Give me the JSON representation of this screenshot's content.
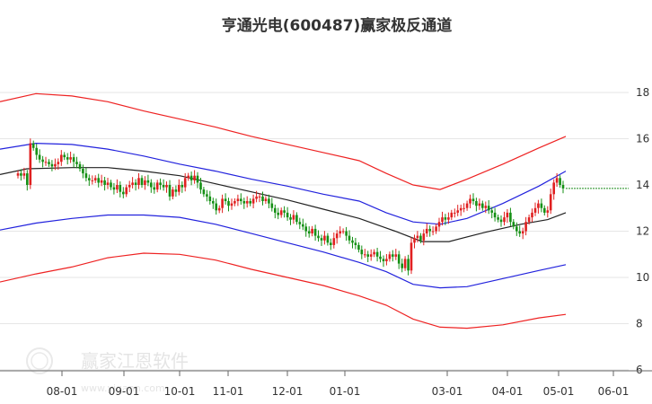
{
  "chart_data": {
    "type": "line",
    "title": "亨通光电(600487)赢家极反通道",
    "x_tick_labels": [
      "08-01",
      "09-01",
      "10-01",
      "11-01",
      "12-01",
      "01-01",
      "03-01",
      "04-01",
      "05-01",
      "06-01"
    ],
    "y_tick_labels": [
      "18",
      "16",
      "14",
      "12",
      "10",
      "8",
      "6"
    ],
    "ylim": [
      6,
      18.5
    ],
    "grid": "horizontal",
    "last_price": 13.85,
    "colors": {
      "outer_band": "#ee2222",
      "inner_band": "#2222dd",
      "middle_line": "#222222",
      "candle_up": "#e02020",
      "candle_down": "#159015",
      "price_line": "#1a8a1a",
      "grid": "#e6e6e6"
    },
    "series": [
      {
        "key": "upper_outer",
        "points": [
          [
            0,
            17.6
          ],
          [
            40,
            17.95
          ],
          [
            80,
            17.85
          ],
          [
            120,
            17.6
          ],
          [
            160,
            17.2
          ],
          [
            200,
            16.85
          ],
          [
            240,
            16.5
          ],
          [
            280,
            16.1
          ],
          [
            320,
            15.75
          ],
          [
            360,
            15.4
          ],
          [
            400,
            15.05
          ],
          [
            430,
            14.5
          ],
          [
            460,
            14.0
          ],
          [
            490,
            13.8
          ],
          [
            520,
            14.25
          ],
          [
            560,
            14.9
          ],
          [
            600,
            15.6
          ],
          [
            630,
            16.1
          ]
        ]
      },
      {
        "key": "upper_inner",
        "points": [
          [
            0,
            15.55
          ],
          [
            40,
            15.8
          ],
          [
            80,
            15.75
          ],
          [
            120,
            15.55
          ],
          [
            160,
            15.25
          ],
          [
            200,
            14.9
          ],
          [
            240,
            14.6
          ],
          [
            280,
            14.25
          ],
          [
            320,
            13.95
          ],
          [
            360,
            13.6
          ],
          [
            400,
            13.3
          ],
          [
            430,
            12.8
          ],
          [
            460,
            12.4
          ],
          [
            490,
            12.3
          ],
          [
            520,
            12.55
          ],
          [
            560,
            13.2
          ],
          [
            600,
            13.95
          ],
          [
            630,
            14.6
          ]
        ]
      },
      {
        "key": "middle",
        "points": [
          [
            0,
            14.45
          ],
          [
            30,
            14.7
          ],
          [
            80,
            14.75
          ],
          [
            120,
            14.75
          ],
          [
            160,
            14.6
          ],
          [
            200,
            14.4
          ],
          [
            240,
            14.05
          ],
          [
            280,
            13.7
          ],
          [
            320,
            13.35
          ],
          [
            360,
            12.95
          ],
          [
            400,
            12.55
          ],
          [
            440,
            12.0
          ],
          [
            470,
            11.55
          ],
          [
            500,
            11.55
          ],
          [
            540,
            11.95
          ],
          [
            580,
            12.3
          ],
          [
            610,
            12.5
          ],
          [
            630,
            12.8
          ]
        ]
      },
      {
        "key": "lower_inner",
        "points": [
          [
            0,
            12.05
          ],
          [
            40,
            12.35
          ],
          [
            80,
            12.55
          ],
          [
            120,
            12.7
          ],
          [
            160,
            12.7
          ],
          [
            200,
            12.6
          ],
          [
            240,
            12.3
          ],
          [
            280,
            11.9
          ],
          [
            320,
            11.5
          ],
          [
            360,
            11.1
          ],
          [
            400,
            10.65
          ],
          [
            430,
            10.25
          ],
          [
            460,
            9.7
          ],
          [
            490,
            9.55
          ],
          [
            520,
            9.6
          ],
          [
            560,
            9.95
          ],
          [
            600,
            10.3
          ],
          [
            630,
            10.55
          ]
        ]
      },
      {
        "key": "lower_outer",
        "points": [
          [
            0,
            9.8
          ],
          [
            40,
            10.15
          ],
          [
            80,
            10.45
          ],
          [
            120,
            10.85
          ],
          [
            160,
            11.05
          ],
          [
            200,
            11.0
          ],
          [
            240,
            10.75
          ],
          [
            280,
            10.35
          ],
          [
            320,
            10.0
          ],
          [
            360,
            9.65
          ],
          [
            400,
            9.2
          ],
          [
            430,
            8.8
          ],
          [
            460,
            8.2
          ],
          [
            490,
            7.85
          ],
          [
            520,
            7.8
          ],
          [
            560,
            7.95
          ],
          [
            600,
            8.25
          ],
          [
            630,
            8.4
          ]
        ]
      }
    ],
    "candles_close": [
      14.5,
      14.4,
      14.5,
      14.0,
      15.8,
      15.6,
      15.3,
      15.1,
      15.0,
      15.0,
      14.9,
      14.8,
      14.9,
      15.0,
      15.3,
      15.2,
      15.1,
      15.2,
      15.0,
      14.9,
      14.7,
      14.5,
      14.3,
      14.2,
      14.2,
      14.3,
      14.1,
      14.2,
      14.0,
      14.1,
      13.9,
      13.8,
      14.0,
      13.7,
      13.6,
      13.9,
      14.0,
      14.1,
      14.0,
      14.3,
      14.0,
      14.2,
      14.1,
      13.9,
      13.8,
      14.1,
      14.0,
      13.9,
      14.0,
      13.5,
      13.8,
      13.7,
      14.0,
      13.9,
      14.3,
      14.4,
      14.2,
      14.4,
      14.1,
      13.8,
      13.6,
      13.5,
      13.3,
      13.2,
      12.9,
      13.0,
      13.4,
      13.3,
      13.1,
      13.2,
      13.3,
      13.4,
      13.3,
      13.2,
      13.3,
      13.2,
      13.4,
      13.5,
      13.5,
      13.3,
      13.4,
      13.2,
      13.0,
      12.8,
      12.7,
      12.9,
      12.8,
      12.6,
      12.5,
      12.7,
      12.4,
      12.3,
      12.2,
      12.0,
      11.9,
      12.1,
      11.8,
      11.7,
      11.6,
      11.8,
      11.5,
      11.4,
      11.7,
      11.9,
      12.0,
      12.0,
      11.8,
      11.6,
      11.5,
      11.4,
      11.2,
      11.0,
      11.0,
      10.9,
      11.0,
      11.1,
      10.9,
      10.8,
      10.7,
      10.8,
      11.0,
      10.9,
      11.0,
      10.6,
      10.4,
      10.8,
      10.3,
      11.5,
      11.7,
      11.8,
      11.6,
      11.9,
      12.1,
      12.0,
      12.0,
      12.2,
      12.4,
      12.6,
      12.5,
      12.6,
      12.8,
      12.8,
      12.9,
      13.0,
      13.0,
      13.2,
      13.4,
      13.3,
      13.1,
      13.2,
      13.0,
      13.1,
      12.9,
      12.8,
      12.6,
      12.5,
      12.4,
      12.6,
      12.8,
      12.4,
      12.2,
      12.0,
      11.9,
      12.0,
      12.4,
      12.6,
      12.8,
      13.0,
      13.2,
      13.0,
      12.8,
      12.9,
      13.6,
      14.1,
      14.3,
      14.0,
      13.85
    ],
    "price_line_range": [
      630,
      700
    ]
  }
}
